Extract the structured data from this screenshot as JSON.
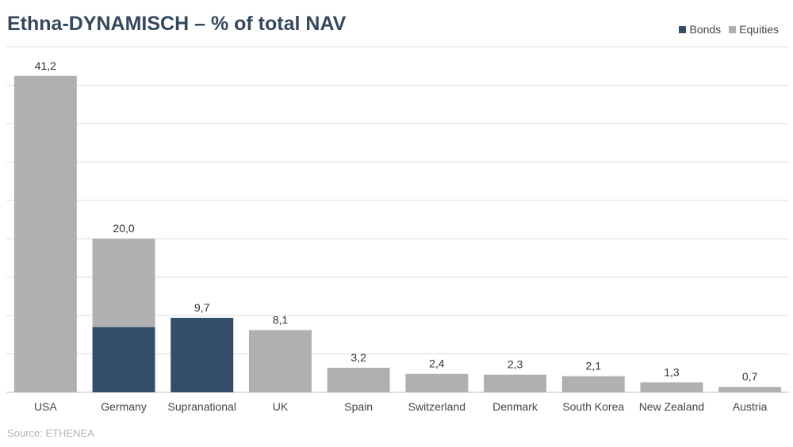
{
  "chart_data": {
    "type": "bar",
    "title": "Ethna-DYNAMISCH – % of total NAV",
    "categories": [
      "USA",
      "Germany",
      "Supranational",
      "UK",
      "Spain",
      "Switzerland",
      "Denmark",
      "South Korea",
      "New Zealand",
      "Austria"
    ],
    "series": [
      {
        "name": "Bonds",
        "color": "#344e69",
        "values": [
          0,
          8.5,
          9.7,
          0,
          0,
          0,
          0,
          0,
          0,
          0
        ]
      },
      {
        "name": "Equities",
        "color": "#b0b0b0",
        "values": [
          41.2,
          11.5,
          0,
          8.1,
          3.2,
          2.4,
          2.3,
          2.1,
          1.3,
          0.7
        ]
      }
    ],
    "totals": [
      "41,2",
      "20,0",
      "9,7",
      "8,1",
      "3,2",
      "2,4",
      "2,3",
      "2,1",
      "1,3",
      "0,7"
    ],
    "stacked": true,
    "ylim": [
      0,
      45
    ],
    "grid": true,
    "legend_position": "top-right",
    "xlabel": "",
    "ylabel": ""
  },
  "source_text": "Source: ETHENEA"
}
